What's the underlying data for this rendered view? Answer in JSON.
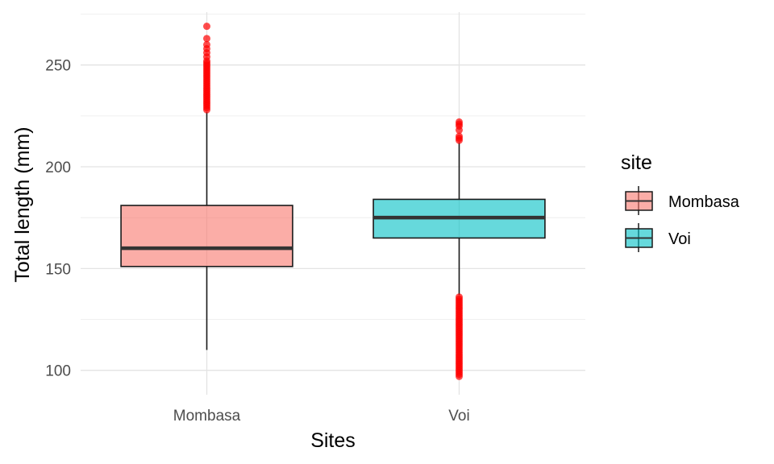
{
  "chart_data": {
    "type": "box",
    "xlabel": "Sites",
    "ylabel": "Total length (mm)",
    "categories": [
      "Mombasa",
      "Voi"
    ],
    "ylim": [
      88,
      276
    ],
    "y_ticks": [
      100,
      150,
      200,
      250
    ],
    "grid": true,
    "legend": {
      "title": "site",
      "position": "right",
      "entries": [
        "Mombasa",
        "Voi"
      ]
    },
    "series": [
      {
        "category": "Mombasa",
        "fill": "#F8766D",
        "whisker_low": 110,
        "q1": 151,
        "median": 160,
        "q3": 181,
        "whisker_high": 227,
        "outliers": [
          228,
          229,
          230,
          231,
          232,
          233,
          234,
          235,
          236,
          237,
          238,
          239,
          240,
          241,
          242,
          243,
          244,
          245,
          246,
          247,
          248,
          249,
          250,
          251,
          252,
          254,
          256,
          258,
          260,
          263,
          269
        ]
      },
      {
        "category": "Voi",
        "fill": "#00BFC4",
        "whisker_low": 137,
        "q1": 165,
        "median": 175,
        "q3": 184,
        "whisker_high": 212,
        "outliers": [
          97,
          98,
          99,
          100,
          101,
          102,
          103,
          104,
          105,
          106,
          107,
          108,
          109,
          110,
          111,
          112,
          113,
          114,
          115,
          116,
          117,
          118,
          119,
          120,
          121,
          122,
          123,
          124,
          125,
          126,
          127,
          128,
          129,
          130,
          131,
          132,
          133,
          134,
          135,
          136,
          213,
          214,
          215,
          218,
          220,
          221,
          222
        ]
      }
    ],
    "outlier_color": "#FF0000"
  }
}
